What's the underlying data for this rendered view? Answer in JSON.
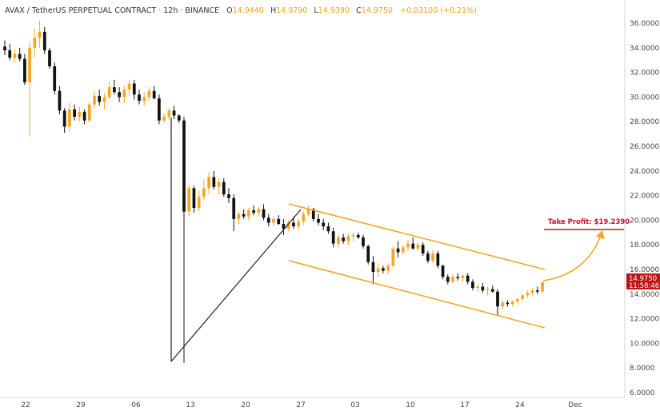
{
  "header": {
    "symbol": "AVAX / TetherUS PERPETUAL CONTRACT · 12h · BINANCE",
    "o_label": "O",
    "o_value": "14.9440",
    "h_label": "H",
    "h_value": "14.9790",
    "l_label": "L",
    "l_value": "14.9390",
    "c_label": "C",
    "c_value": "14.9750",
    "change": "+0.03100 (+0.21%)"
  },
  "price_badge": {
    "price": "14.9750",
    "countdown": "11:58:46"
  },
  "take_profit": {
    "label": "Take Profit: $19.2390",
    "price": 19.239
  },
  "colors": {
    "up": "#f5a623",
    "down": "#111111",
    "channel": "#f5a623",
    "tp": "#c0152a",
    "badge": "#c01414",
    "accent_text": "#e8a020"
  },
  "chart_data": {
    "type": "candlestick",
    "symbol": "AVAX/USDT",
    "interval": "12h",
    "ylim": [
      6,
      37
    ],
    "y_ticks": [
      "36.0000",
      "34.0000",
      "32.0000",
      "30.0000",
      "28.0000",
      "26.0000",
      "24.0000",
      "22.0000",
      "20.0000",
      "18.0000",
      "16.0000",
      "14.0000",
      "12.0000",
      "10.0000",
      "8.0000",
      "6.0000"
    ],
    "x_ticks": [
      "22",
      "29",
      "06",
      "13",
      "20",
      "27",
      "03",
      "10",
      "17",
      "24",
      "Dec"
    ],
    "candles": [
      [
        34.1,
        34.6,
        33.4,
        33.8
      ],
      [
        33.8,
        34.3,
        33.0,
        33.2
      ],
      [
        33.2,
        33.9,
        32.8,
        33.5
      ],
      [
        33.5,
        34.0,
        32.9,
        33.1
      ],
      [
        33.1,
        33.5,
        31.0,
        31.2
      ],
      [
        31.2,
        34.5,
        26.8,
        34.0
      ],
      [
        34.0,
        35.6,
        33.2,
        34.8
      ],
      [
        34.8,
        36.2,
        34.0,
        35.3
      ],
      [
        35.3,
        35.7,
        33.5,
        33.8
      ],
      [
        33.8,
        34.0,
        32.3,
        32.5
      ],
      [
        32.5,
        32.8,
        30.2,
        30.5
      ],
      [
        30.5,
        30.9,
        28.6,
        28.9
      ],
      [
        28.9,
        29.1,
        27.1,
        27.6
      ],
      [
        27.6,
        29.5,
        27.2,
        29.0
      ],
      [
        29.0,
        29.4,
        28.1,
        28.4
      ],
      [
        28.4,
        29.2,
        28.0,
        28.8
      ],
      [
        28.8,
        29.0,
        27.8,
        28.1
      ],
      [
        28.1,
        29.6,
        28.0,
        29.4
      ],
      [
        29.4,
        30.5,
        29.1,
        30.1
      ],
      [
        30.1,
        30.6,
        29.3,
        29.6
      ],
      [
        29.6,
        30.3,
        29.0,
        30.0
      ],
      [
        30.0,
        31.3,
        29.8,
        30.8
      ],
      [
        30.8,
        31.4,
        30.2,
        30.4
      ],
      [
        30.4,
        30.8,
        29.6,
        30.0
      ],
      [
        30.0,
        30.9,
        29.5,
        30.6
      ],
      [
        30.6,
        31.4,
        30.1,
        31.1
      ],
      [
        31.1,
        31.4,
        29.8,
        30.2
      ],
      [
        30.2,
        30.6,
        29.4,
        29.7
      ],
      [
        29.7,
        30.4,
        29.3,
        30.0
      ],
      [
        30.0,
        30.8,
        29.7,
        30.5
      ],
      [
        30.5,
        30.9,
        29.8,
        29.9
      ],
      [
        29.9,
        30.2,
        27.8,
        28.1
      ],
      [
        28.1,
        28.7,
        27.9,
        28.4
      ],
      [
        28.4,
        29.1,
        28.1,
        28.9
      ],
      [
        28.9,
        29.3,
        28.2,
        28.5
      ],
      [
        28.5,
        28.6,
        27.9,
        28.1
      ],
      [
        28.1,
        28.4,
        8.4,
        20.7
      ],
      [
        20.7,
        22.9,
        20.3,
        22.6
      ],
      [
        22.6,
        22.8,
        20.6,
        21.0
      ],
      [
        21.0,
        22.4,
        20.7,
        21.9
      ],
      [
        21.9,
        23.3,
        21.6,
        22.6
      ],
      [
        22.6,
        23.9,
        22.1,
        23.5
      ],
      [
        23.5,
        24.0,
        22.5,
        22.7
      ],
      [
        22.7,
        23.4,
        22.1,
        23.1
      ],
      [
        23.1,
        23.4,
        21.9,
        22.1
      ],
      [
        22.1,
        22.6,
        21.4,
        21.8
      ],
      [
        21.8,
        22.1,
        19.1,
        20.1
      ],
      [
        20.1,
        20.7,
        19.7,
        20.5
      ],
      [
        20.5,
        20.9,
        20.1,
        20.3
      ],
      [
        20.3,
        21.0,
        20.0,
        20.8
      ],
      [
        20.8,
        21.2,
        20.4,
        20.6
      ],
      [
        20.6,
        21.1,
        20.3,
        20.9
      ],
      [
        20.9,
        21.3,
        20.0,
        20.2
      ],
      [
        20.2,
        20.5,
        19.5,
        19.8
      ],
      [
        19.8,
        20.3,
        19.5,
        20.1
      ],
      [
        20.1,
        20.4,
        19.6,
        19.7
      ],
      [
        19.7,
        20.1,
        18.8,
        19.3
      ],
      [
        19.3,
        20.0,
        19.1,
        19.8
      ],
      [
        19.8,
        20.3,
        19.3,
        19.5
      ],
      [
        19.5,
        20.1,
        19.2,
        19.9
      ],
      [
        19.9,
        20.7,
        19.6,
        20.5
      ],
      [
        20.5,
        21.2,
        20.3,
        20.9
      ],
      [
        20.9,
        21.0,
        19.9,
        20.1
      ],
      [
        20.1,
        20.5,
        19.6,
        19.8
      ],
      [
        19.8,
        20.1,
        19.2,
        19.5
      ],
      [
        19.5,
        19.8,
        18.9,
        19.1
      ],
      [
        19.1,
        19.4,
        17.8,
        18.1
      ],
      [
        18.1,
        18.8,
        17.8,
        18.6
      ],
      [
        18.6,
        18.9,
        18.1,
        18.3
      ],
      [
        18.3,
        18.9,
        18.0,
        18.7
      ],
      [
        18.7,
        19.0,
        18.3,
        18.8
      ],
      [
        18.8,
        19.0,
        18.5,
        18.6
      ],
      [
        18.6,
        18.8,
        17.7,
        17.9
      ],
      [
        17.9,
        18.0,
        16.4,
        16.6
      ],
      [
        16.6,
        17.1,
        14.8,
        15.8
      ],
      [
        15.8,
        16.5,
        15.4,
        16.1
      ],
      [
        16.1,
        16.3,
        15.7,
        15.9
      ],
      [
        15.9,
        16.5,
        15.6,
        16.3
      ],
      [
        16.3,
        17.9,
        16.2,
        17.7
      ],
      [
        17.7,
        18.3,
        17.0,
        17.4
      ],
      [
        17.4,
        18.0,
        17.2,
        17.8
      ],
      [
        17.8,
        18.4,
        17.5,
        18.1
      ],
      [
        18.1,
        18.6,
        17.6,
        17.7
      ],
      [
        17.7,
        18.2,
        17.5,
        18.0
      ],
      [
        18.0,
        18.2,
        17.1,
        17.3
      ],
      [
        17.3,
        17.5,
        16.5,
        16.7
      ],
      [
        16.7,
        17.6,
        16.5,
        17.3
      ],
      [
        17.3,
        17.5,
        16.1,
        16.3
      ],
      [
        16.3,
        16.4,
        15.2,
        15.4
      ],
      [
        15.4,
        15.6,
        14.8,
        15.0
      ],
      [
        15.0,
        15.6,
        14.9,
        15.4
      ],
      [
        15.4,
        15.7,
        15.1,
        15.3
      ],
      [
        15.3,
        15.6,
        15.0,
        15.5
      ],
      [
        15.5,
        15.7,
        14.8,
        15.0
      ],
      [
        15.0,
        15.2,
        14.3,
        14.5
      ],
      [
        14.5,
        14.8,
        14.2,
        14.6
      ],
      [
        14.6,
        14.9,
        14.1,
        14.3
      ],
      [
        14.3,
        14.6,
        13.9,
        14.4
      ],
      [
        14.4,
        14.7,
        14.1,
        14.2
      ],
      [
        14.2,
        14.4,
        12.3,
        13.0
      ],
      [
        13.0,
        13.5,
        12.7,
        13.3
      ],
      [
        13.3,
        13.5,
        13.0,
        13.2
      ],
      [
        13.2,
        13.5,
        13.0,
        13.4
      ],
      [
        13.4,
        13.7,
        13.2,
        13.6
      ],
      [
        13.6,
        14.0,
        13.4,
        13.9
      ],
      [
        13.9,
        14.3,
        13.7,
        14.1
      ],
      [
        14.1,
        14.5,
        13.9,
        14.3
      ],
      [
        14.3,
        14.6,
        14.0,
        14.2
      ],
      [
        14.2,
        14.98,
        14.1,
        14.975
      ]
    ]
  }
}
